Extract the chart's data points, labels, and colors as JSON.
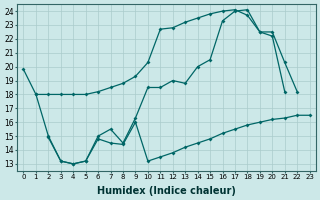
{
  "xlabel": "Humidex (Indice chaleur)",
  "bg_color": "#cce8e8",
  "grid_color": "#aacccc",
  "line_color": "#006666",
  "xlim": [
    -0.5,
    23.5
  ],
  "ylim": [
    12.5,
    24.5
  ],
  "yticks": [
    13,
    14,
    15,
    16,
    17,
    18,
    19,
    20,
    21,
    22,
    23,
    24
  ],
  "xticks": [
    0,
    1,
    2,
    3,
    4,
    5,
    6,
    7,
    8,
    9,
    10,
    11,
    12,
    13,
    14,
    15,
    16,
    17,
    18,
    19,
    20,
    21,
    22,
    23
  ],
  "line1_x": [
    0,
    1,
    2,
    3,
    4,
    5,
    6,
    7,
    8,
    9,
    10,
    11,
    12,
    13,
    14,
    15,
    16,
    17,
    18,
    19,
    20,
    21
  ],
  "line1_y": [
    19.8,
    18.0,
    18.0,
    18.0,
    18.0,
    18.0,
    18.2,
    18.5,
    18.8,
    19.3,
    20.3,
    22.7,
    22.8,
    23.2,
    23.5,
    23.8,
    24.0,
    24.1,
    23.7,
    22.5,
    22.2,
    18.2
  ],
  "line2_x": [
    1,
    2,
    3,
    4,
    5,
    6,
    7,
    8,
    9,
    10,
    11,
    12,
    13,
    14,
    15,
    16,
    17,
    18,
    19,
    20,
    21,
    22,
    23
  ],
  "line2_y": [
    18.0,
    15.0,
    13.2,
    13.0,
    13.2,
    15.0,
    15.5,
    14.5,
    16.3,
    18.5,
    18.5,
    19.0,
    18.8,
    20.0,
    20.5,
    23.3,
    24.0,
    24.1,
    22.5,
    22.5,
    20.3,
    18.2,
    null
  ],
  "line3_x": [
    2,
    3,
    4,
    5,
    6,
    7,
    8,
    9,
    10,
    11,
    12,
    13,
    14,
    15,
    16,
    17,
    18,
    19,
    20,
    21,
    22,
    23
  ],
  "line3_y": [
    14.9,
    13.2,
    13.0,
    13.2,
    14.8,
    14.5,
    14.4,
    16.0,
    13.2,
    13.5,
    13.8,
    14.2,
    14.5,
    14.8,
    15.2,
    15.5,
    15.8,
    16.0,
    16.2,
    16.3,
    16.5,
    16.5
  ]
}
